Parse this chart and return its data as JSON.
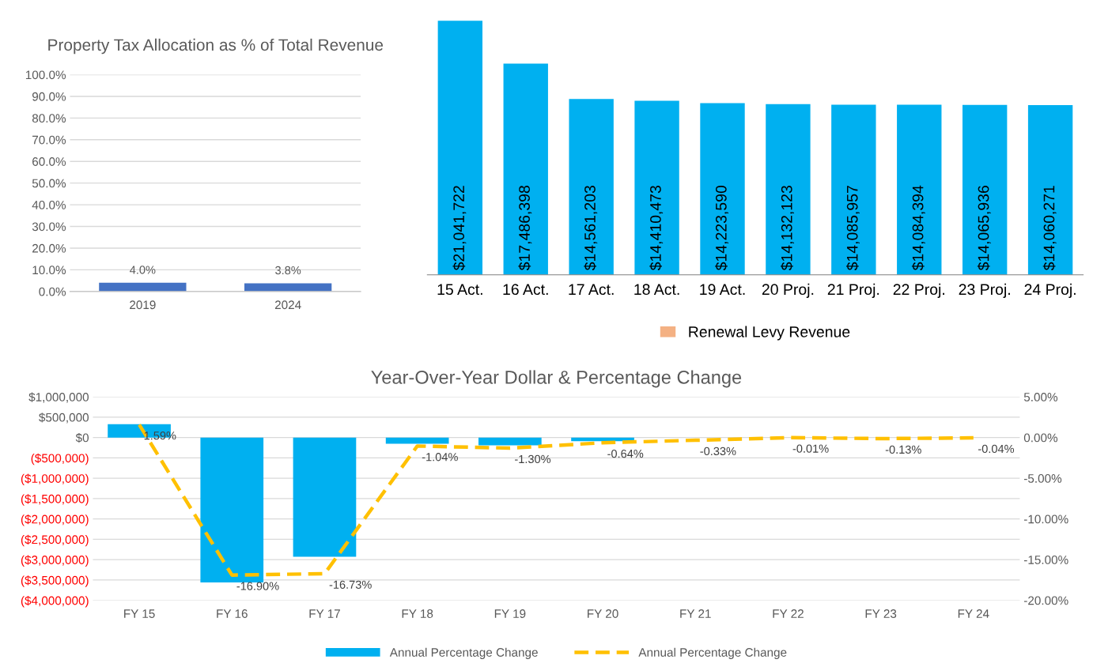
{
  "chart_data": [
    {
      "type": "bar",
      "title": "Property Tax Allocation as % of Total Revenue",
      "categories": [
        "2019",
        "2024"
      ],
      "series": [
        {
          "color": "#4472c4",
          "values": [
            4.0,
            3.8
          ],
          "value_labels": [
            "4.0%",
            "3.8%"
          ]
        }
      ],
      "ylim": [
        0,
        100
      ],
      "yticks": [
        {
          "value": 0,
          "label": "0.0%"
        },
        {
          "value": 10,
          "label": "10.0%"
        },
        {
          "value": 20,
          "label": "20.0%"
        },
        {
          "value": 30,
          "label": "30.0%"
        },
        {
          "value": 40,
          "label": "40.0%"
        },
        {
          "value": 50,
          "label": "50.0%"
        },
        {
          "value": 60,
          "label": "60.0%"
        },
        {
          "value": 70,
          "label": "70.0%"
        },
        {
          "value": 80,
          "label": "80.0%"
        },
        {
          "value": 90,
          "label": "90.0%"
        },
        {
          "value": 100,
          "label": "100.0%"
        }
      ],
      "grid": "y"
    },
    {
      "type": "bar",
      "categories": [
        "15 Act.",
        "16 Act.",
        "17 Act.",
        "18 Act.",
        "19 Act.",
        "20 Proj.",
        "21 Proj.",
        "22 Proj.",
        "23 Proj.",
        "24 Proj."
      ],
      "series": [
        {
          "color": "#00b0f0",
          "values": [
            21041722,
            17486398,
            14561203,
            14410473,
            14223590,
            14132123,
            14085957,
            14084394,
            14065936,
            14060271
          ],
          "value_labels": [
            "$21,041,722",
            "$17,486,398",
            "$14,561,203",
            "$14,410,473",
            "$14,223,590",
            "$14,132,123",
            "$14,085,957",
            "$14,084,394",
            "$14,065,936",
            "$14,060,271"
          ]
        },
        {
          "name": "Renewal Levy Revenue",
          "color": "#f4b183",
          "values": [
            null,
            null,
            null,
            null,
            null,
            null,
            null,
            null,
            null,
            null
          ]
        }
      ],
      "tick_labels": "x",
      "legend": "bottom"
    },
    {
      "type": "bar",
      "title": "Year-Over-Year Dollar & Percentage Change",
      "categories": [
        "FY 15",
        "FY 16",
        "FY 17",
        "FY 18",
        "FY 19",
        "FY 20",
        "FY 21",
        "FY 22",
        "FY 23",
        "FY 24"
      ],
      "series": [
        {
          "name": "Annual Percentage Change",
          "type": "bar",
          "color": "#00b0f0",
          "values": [
            330000,
            -3560000,
            -2930000,
            -150000,
            -190000,
            -90000,
            null,
            0,
            null,
            null
          ]
        },
        {
          "name": "Annual Percentage Change",
          "type": "line",
          "axis": "y2",
          "color": "#ffc000",
          "values": [
            1.59,
            -16.9,
            -16.73,
            -1.04,
            -1.3,
            -0.64,
            -0.33,
            -0.01,
            -0.13,
            -0.04
          ],
          "value_labels": [
            "1.59%",
            "-16.90%",
            "-16.73%",
            "-1.04%",
            "-1.30%",
            "-0.64%",
            "-0.33%",
            "-0.01%",
            "-0.13%",
            "-0.04%"
          ]
        }
      ],
      "line_style": "dashed",
      "ylim": [
        -4000000,
        1000000
      ],
      "yticks": [
        {
          "value": -4000000,
          "label": "($4,000,000)"
        },
        {
          "value": -3500000,
          "label": "($3,500,000)"
        },
        {
          "value": -3000000,
          "label": "($3,000,000)"
        },
        {
          "value": -2500000,
          "label": "($2,500,000)"
        },
        {
          "value": -2000000,
          "label": "($2,000,000)"
        },
        {
          "value": -1500000,
          "label": "($1,500,000)"
        },
        {
          "value": -1000000,
          "label": "($1,000,000)"
        },
        {
          "value": -500000,
          "label": "($500,000)"
        },
        {
          "value": 0,
          "label": "$0"
        },
        {
          "value": 500000,
          "label": "$500,000"
        },
        {
          "value": 1000000,
          "label": "$1,000,000"
        }
      ],
      "y2lim": [
        -20,
        5
      ],
      "y2ticks": [
        {
          "value": -20,
          "label": "-20.00%"
        },
        {
          "value": -15,
          "label": "-15.00%"
        },
        {
          "value": -10,
          "label": "-10.00%"
        },
        {
          "value": -5,
          "label": "-5.00%"
        },
        {
          "value": 0,
          "label": "0.00%"
        },
        {
          "value": 5,
          "label": "5.00%"
        }
      ],
      "grid": "y",
      "legend": "bottom"
    }
  ]
}
